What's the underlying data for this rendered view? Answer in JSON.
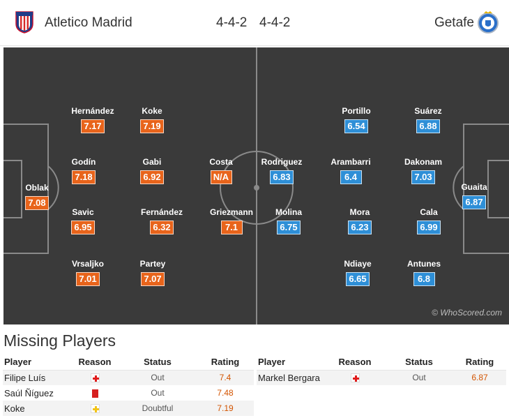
{
  "header": {
    "home_team": "Atletico Madrid",
    "away_team": "Getafe",
    "home_formation": "4-4-2",
    "away_formation": "4-4-2"
  },
  "pitch": {
    "watermark": "© WhoScored.com",
    "home_players": [
      {
        "name": "Oblak",
        "rating": "7.08"
      },
      {
        "name": "Hernández",
        "rating": "7.17"
      },
      {
        "name": "Godín",
        "rating": "7.18"
      },
      {
        "name": "Savic",
        "rating": "6.95"
      },
      {
        "name": "Vrsaljko",
        "rating": "7.01"
      },
      {
        "name": "Koke",
        "rating": "7.19"
      },
      {
        "name": "Gabi",
        "rating": "6.92"
      },
      {
        "name": "Fernández",
        "rating": "6.32"
      },
      {
        "name": "Partey",
        "rating": "7.07"
      },
      {
        "name": "Costa",
        "rating": "N/A"
      },
      {
        "name": "Griezmann",
        "rating": "7.1"
      }
    ],
    "away_players": [
      {
        "name": "Rodriguez",
        "rating": "6.83"
      },
      {
        "name": "Molina",
        "rating": "6.75"
      },
      {
        "name": "Portillo",
        "rating": "6.54"
      },
      {
        "name": "Arambarri",
        "rating": "6.4"
      },
      {
        "name": "Mora",
        "rating": "6.23"
      },
      {
        "name": "Ndiaye",
        "rating": "6.65"
      },
      {
        "name": "Suárez",
        "rating": "6.88"
      },
      {
        "name": "Dakonam",
        "rating": "7.03"
      },
      {
        "name": "Cala",
        "rating": "6.99"
      },
      {
        "name": "Antunes",
        "rating": "6.8"
      },
      {
        "name": "Guaita",
        "rating": "6.87"
      }
    ]
  },
  "missing": {
    "title": "Missing Players",
    "columns": [
      "Player",
      "Reason",
      "Status",
      "Rating"
    ],
    "home": [
      {
        "player": "Filipe Luís",
        "reason": "injury-icon",
        "status": "Out",
        "rating": "7.4"
      },
      {
        "player": "Saúl Ñíguez",
        "reason": "red-card-icon",
        "status": "Out",
        "rating": "7.48"
      },
      {
        "player": "Koke",
        "reason": "doubtful-icon",
        "status": "Doubtful",
        "rating": "7.19"
      }
    ],
    "away": [
      {
        "player": "Markel Bergara",
        "reason": "injury-icon",
        "status": "Out",
        "rating": "6.87"
      }
    ]
  },
  "colors": {
    "home_rating": "#e8641b",
    "away_rating": "#2e8fd7",
    "pitch": "#3a3a3a",
    "missing_rating": "#d35400"
  }
}
